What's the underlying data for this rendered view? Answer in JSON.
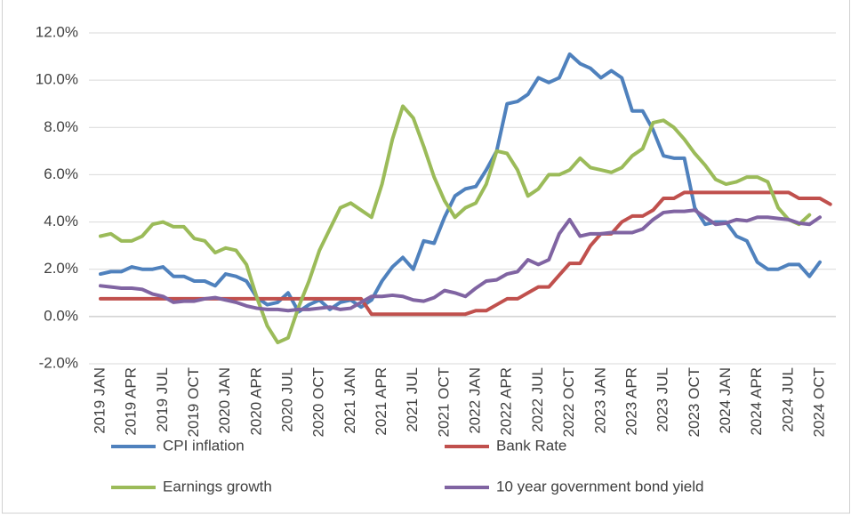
{
  "chart_data": {
    "type": "line",
    "categories": [
      "2019 JAN",
      null,
      null,
      "2019 APR",
      null,
      null,
      "2019 JUL",
      null,
      null,
      "2019 OCT",
      null,
      null,
      "2020 JAN",
      null,
      null,
      "2020 APR",
      null,
      null,
      "2020 JUL",
      null,
      null,
      "2020 OCT",
      null,
      null,
      "2021 JAN",
      null,
      null,
      "2021 APR",
      null,
      null,
      "2021 JUL",
      null,
      null,
      "2021 OCT",
      null,
      null,
      "2022 JAN",
      null,
      null,
      "2022 APR",
      null,
      null,
      "2022 JUL",
      null,
      null,
      "2022 OCT",
      null,
      null,
      "2023 JAN",
      null,
      null,
      "2023 APR",
      null,
      null,
      "2023 JUL",
      null,
      null,
      "2023 OCT",
      null,
      null,
      "2024 JAN",
      null,
      null,
      "2024 APR",
      null,
      null,
      "2024 JUL",
      null,
      null,
      "2024 OCT",
      null
    ],
    "series": [
      {
        "name": "CPI inflation",
        "color": "#4f81bd",
        "values": [
          1.8,
          1.9,
          1.9,
          2.1,
          2.0,
          2.0,
          2.1,
          1.7,
          1.7,
          1.5,
          1.5,
          1.3,
          1.8,
          1.7,
          1.5,
          0.8,
          0.5,
          0.6,
          1.0,
          0.2,
          0.5,
          0.7,
          0.3,
          0.6,
          0.7,
          0.4,
          0.7,
          1.5,
          2.1,
          2.5,
          2.0,
          3.2,
          3.1,
          4.2,
          5.1,
          5.4,
          5.5,
          6.2,
          7.0,
          9.0,
          9.1,
          9.4,
          10.1,
          9.9,
          10.1,
          11.1,
          10.7,
          10.5,
          10.1,
          10.4,
          10.1,
          8.7,
          8.7,
          7.9,
          6.8,
          6.7,
          6.7,
          4.6,
          3.9,
          4.0,
          4.0,
          3.4,
          3.2,
          2.3,
          2.0,
          2.0,
          2.2,
          2.2,
          1.7,
          2.3,
          null
        ]
      },
      {
        "name": "Bank Rate",
        "color": "#c0504d",
        "values": [
          0.75,
          0.75,
          0.75,
          0.75,
          0.75,
          0.75,
          0.75,
          0.75,
          0.75,
          0.75,
          0.75,
          0.75,
          0.75,
          0.75,
          0.75,
          0.75,
          0.75,
          0.75,
          0.75,
          0.75,
          0.75,
          0.75,
          0.75,
          0.75,
          0.75,
          0.75,
          0.1,
          0.1,
          0.1,
          0.1,
          0.1,
          0.1,
          0.1,
          0.1,
          0.1,
          0.1,
          0.25,
          0.25,
          0.5,
          0.75,
          0.75,
          1.0,
          1.25,
          1.25,
          1.75,
          2.25,
          2.25,
          3.0,
          3.5,
          3.5,
          4.0,
          4.25,
          4.25,
          4.5,
          5.0,
          5.0,
          5.25,
          5.25,
          5.25,
          5.25,
          5.25,
          5.25,
          5.25,
          5.25,
          5.25,
          5.25,
          5.25,
          5.0,
          5.0,
          5.0,
          4.75
        ]
      },
      {
        "name": "Earnings growth",
        "color": "#9bbb59",
        "values": [
          3.4,
          3.5,
          3.2,
          3.2,
          3.4,
          3.9,
          4.0,
          3.8,
          3.8,
          3.3,
          3.2,
          2.7,
          2.9,
          2.8,
          2.2,
          0.8,
          -0.4,
          -1.1,
          -0.9,
          0.4,
          1.5,
          2.8,
          3.7,
          4.6,
          4.8,
          4.5,
          4.2,
          5.6,
          7.5,
          8.9,
          8.4,
          7.2,
          5.9,
          4.9,
          4.2,
          4.6,
          4.8,
          5.6,
          7.0,
          6.9,
          6.2,
          5.1,
          5.4,
          6.0,
          6.0,
          6.2,
          6.7,
          6.3,
          6.2,
          6.1,
          6.3,
          6.8,
          7.1,
          8.2,
          8.3,
          8.0,
          7.5,
          6.9,
          6.4,
          5.8,
          5.6,
          5.7,
          5.9,
          5.9,
          5.7,
          4.6,
          4.1,
          3.9,
          4.3,
          null,
          null
        ]
      },
      {
        "name": "10 year government bond yield",
        "color": "#8064a2",
        "values": [
          1.3,
          1.25,
          1.2,
          1.2,
          1.15,
          0.95,
          0.85,
          0.6,
          0.65,
          0.65,
          0.75,
          0.8,
          0.7,
          0.6,
          0.45,
          0.35,
          0.3,
          0.3,
          0.25,
          0.3,
          0.3,
          0.35,
          0.4,
          0.3,
          0.35,
          0.6,
          0.85,
          0.85,
          0.9,
          0.85,
          0.7,
          0.65,
          0.8,
          1.1,
          1.0,
          0.85,
          1.2,
          1.5,
          1.55,
          1.8,
          1.9,
          2.4,
          2.2,
          2.4,
          3.5,
          4.1,
          3.4,
          3.5,
          3.5,
          3.55,
          3.55,
          3.55,
          3.7,
          4.1,
          4.4,
          4.45,
          4.45,
          4.5,
          4.2,
          3.9,
          3.95,
          4.1,
          4.05,
          4.2,
          4.2,
          4.15,
          4.1,
          3.95,
          3.9,
          4.2,
          null
        ]
      }
    ],
    "ylim": [
      -2,
      12
    ],
    "yticks": [
      {
        "value": -2,
        "label": "-2.0%"
      },
      {
        "value": 0,
        "label": "0.0%"
      },
      {
        "value": 2,
        "label": "2.0%"
      },
      {
        "value": 4,
        "label": "4.0%"
      },
      {
        "value": 6,
        "label": "6.0%"
      },
      {
        "value": 8,
        "label": "8.0%"
      },
      {
        "value": 10,
        "label": "10.0%"
      },
      {
        "value": 12,
        "label": "12.0%"
      }
    ],
    "grid": true,
    "legend": "bottom"
  }
}
